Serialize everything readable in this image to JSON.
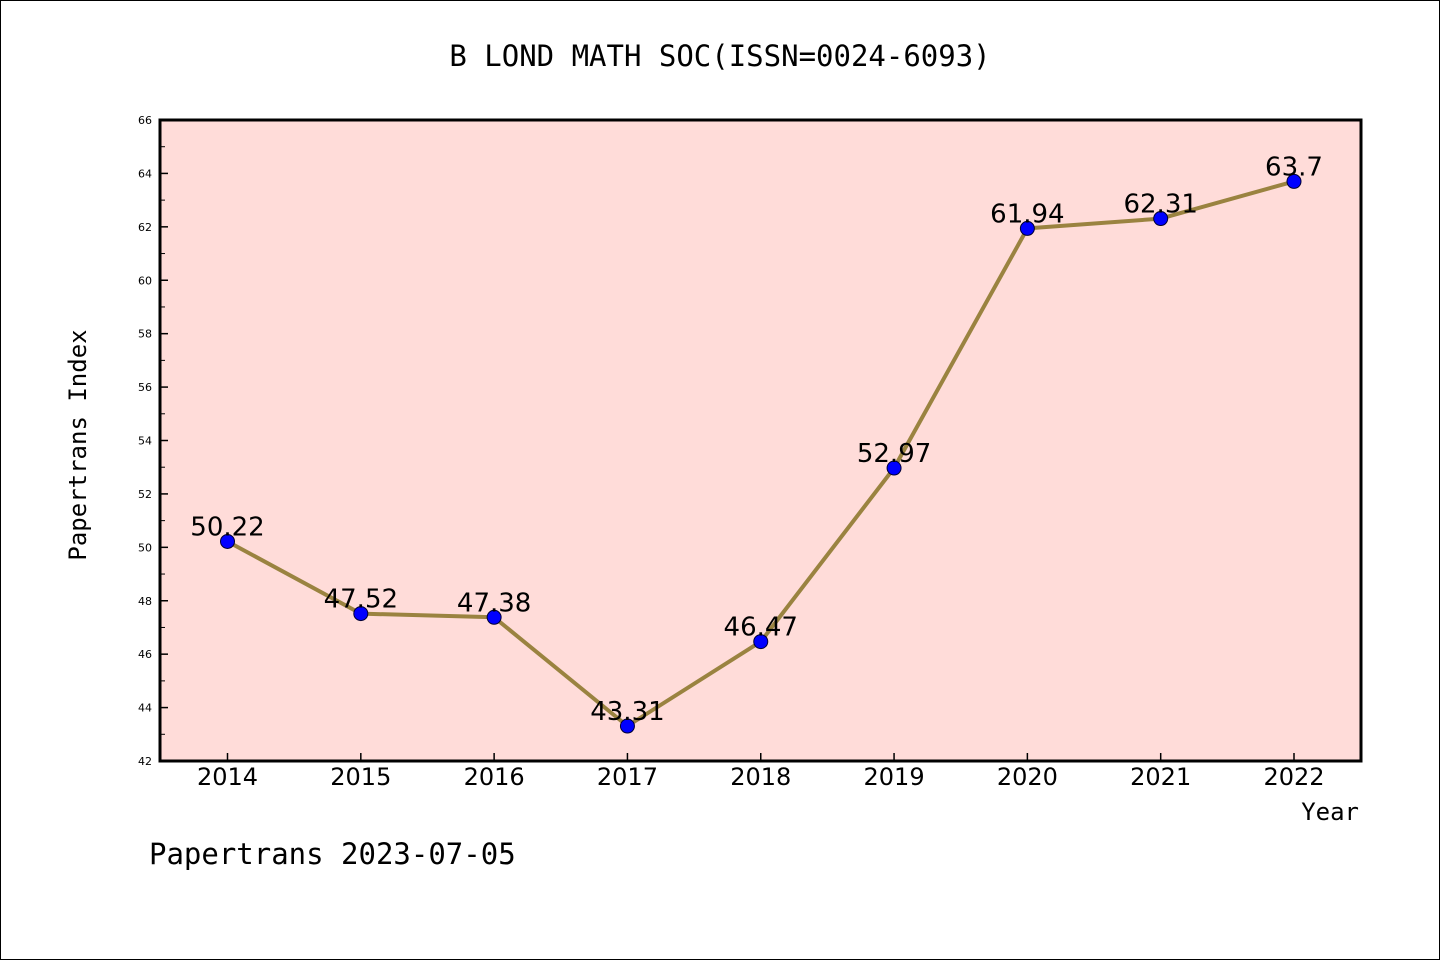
{
  "chart_data": {
    "type": "line",
    "title": "B LOND MATH SOC(ISSN=0024-6093)",
    "xlabel": "Year",
    "ylabel": "Papertrans Index",
    "footer": "Papertrans 2023-07-05",
    "categories": [
      "2014",
      "2015",
      "2016",
      "2017",
      "2018",
      "2019",
      "2020",
      "2021",
      "2022"
    ],
    "values": [
      50.22,
      47.52,
      47.38,
      43.31,
      46.47,
      52.97,
      61.94,
      62.31,
      63.7
    ],
    "data_labels": [
      "50.22",
      "47.52",
      "47.38",
      "43.31",
      "46.47",
      "52.97",
      "61.94",
      "62.31",
      "63.7"
    ],
    "ylim": [
      42,
      66
    ],
    "yticks": [
      "42",
      "44",
      "46",
      "48",
      "50",
      "52",
      "54",
      "56",
      "58",
      "60",
      "62",
      "64",
      "66"
    ],
    "grid": false,
    "colors": {
      "plot_background": "#ffdcd9",
      "line": "#9a8340",
      "marker": "#0000ff"
    }
  }
}
